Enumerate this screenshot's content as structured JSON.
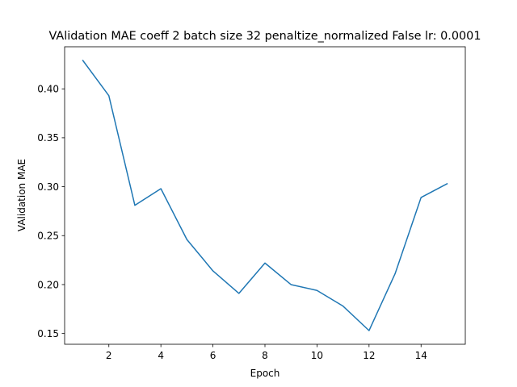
{
  "chart_data": {
    "type": "line",
    "title": "VAlidation MAE coeff 2 batch size 32 penaltize_normalized False lr: 0.0001",
    "xlabel": "Epoch",
    "ylabel": "VAlidation MAE",
    "x": [
      1,
      2,
      3,
      4,
      5,
      6,
      7,
      8,
      9,
      10,
      11,
      12,
      13,
      14,
      15
    ],
    "series": [
      {
        "values": [
          0.429,
          0.393,
          0.281,
          0.298,
          0.246,
          0.214,
          0.191,
          0.222,
          0.2,
          0.194,
          0.178,
          0.153,
          0.211,
          0.289,
          0.303
        ]
      }
    ],
    "xticks": [
      2,
      4,
      6,
      8,
      10,
      12,
      14
    ],
    "xtick_labels": [
      "2",
      "4",
      "6",
      "8",
      "10",
      "12",
      "14"
    ],
    "yticks": [
      0.15,
      0.2,
      0.25,
      0.3,
      0.35,
      0.4
    ],
    "ytick_labels": [
      "0.15",
      "0.20",
      "0.25",
      "0.30",
      "0.35",
      "0.40"
    ],
    "xlim": [
      0.3,
      15.7
    ],
    "ylim": [
      0.139,
      0.443
    ],
    "grid": false,
    "line_color": "#1f77b4"
  }
}
